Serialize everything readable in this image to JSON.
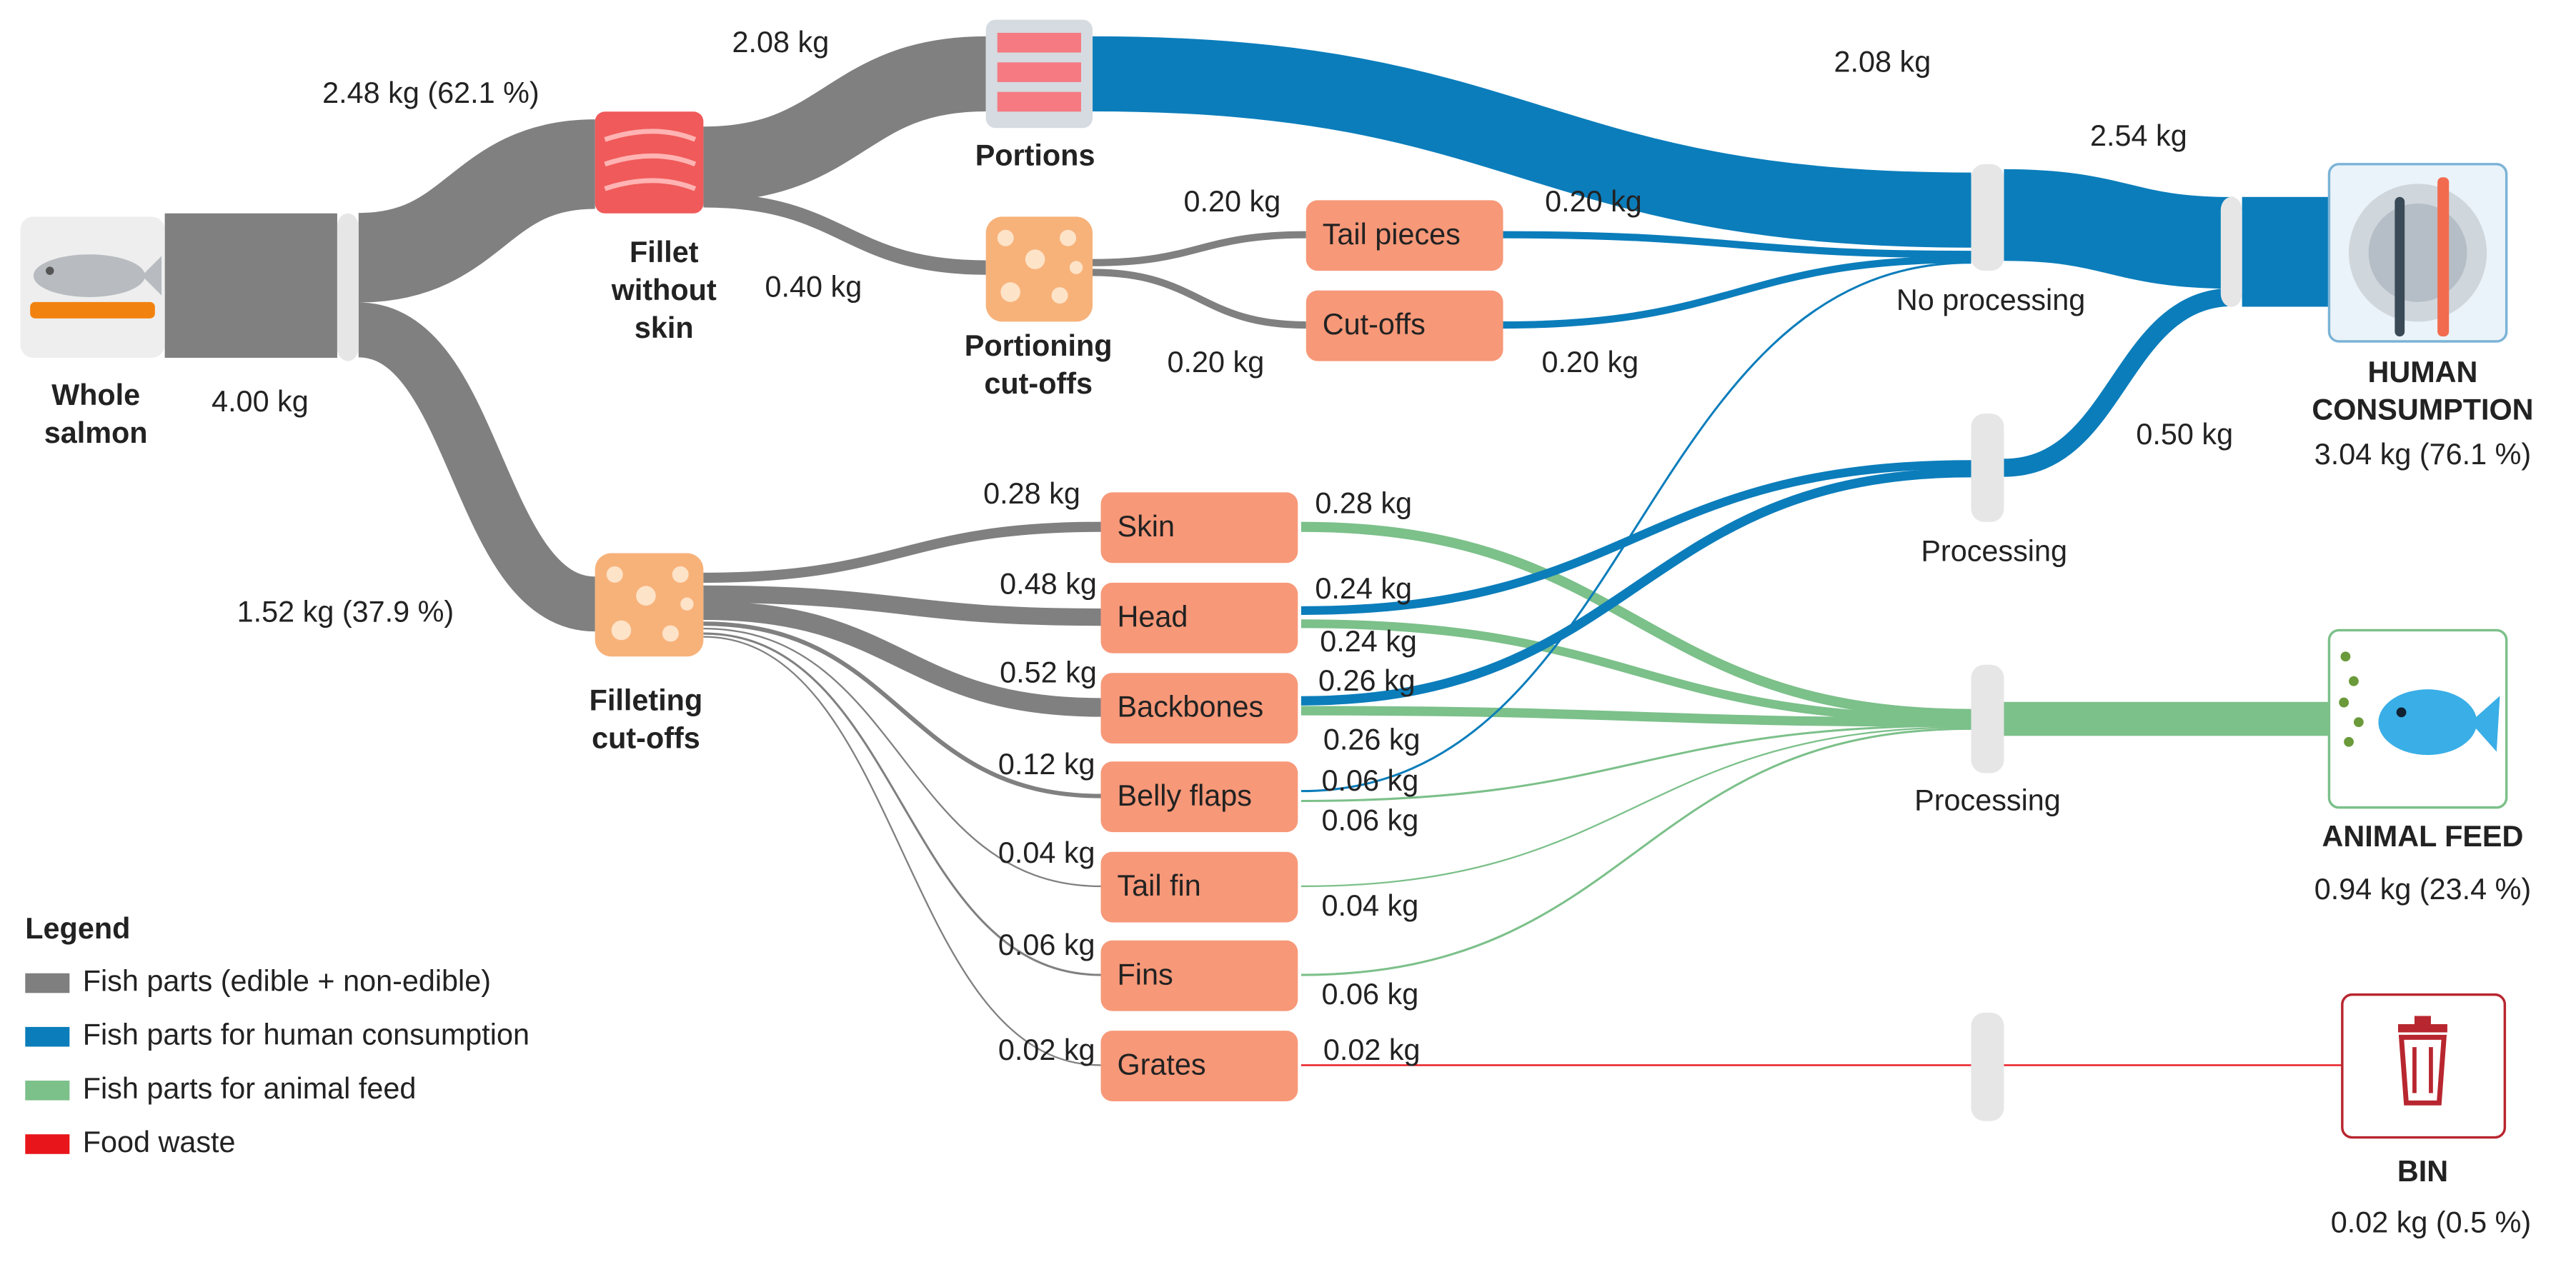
{
  "nodes": {
    "whole": {
      "label": [
        "Whole",
        "salmon"
      ],
      "value": 4.0,
      "value_label": "4.00 kg"
    },
    "fillet": {
      "label": [
        "Fillet",
        "without",
        "skin"
      ]
    },
    "portions": {
      "label": [
        "Portions"
      ]
    },
    "portioning": {
      "label": [
        "Portioning",
        "cut-offs"
      ]
    },
    "filleting": {
      "label": [
        "Filleting",
        "cut-offs"
      ]
    },
    "parts": [
      "Tail pieces",
      "Cut-offs",
      "Skin",
      "Head",
      "Backbones",
      "Belly flaps",
      "Tail fin",
      "Fins",
      "Grates"
    ],
    "stations": [
      "No processing",
      "Processing",
      "Processing"
    ],
    "human": {
      "label": [
        "HUMAN",
        "CONSUMPTION"
      ],
      "value": 3.04,
      "value_label": "3.04 kg (76.1 %)"
    },
    "feed": {
      "label": [
        "ANIMAL FEED"
      ],
      "value": 0.94,
      "value_label": "0.94 kg (23.4 %)"
    },
    "bin": {
      "label": [
        "BIN"
      ],
      "value": 0.02,
      "value_label": "0.02 kg (0.5 %)"
    }
  },
  "flows": {
    "gray": [
      {
        "value": 2.48,
        "label": "2.48 kg (62.1 %)"
      },
      {
        "value": 1.52,
        "label": "1.52 kg (37.9 %)"
      },
      {
        "value": 2.08,
        "label": "2.08 kg"
      },
      {
        "value": 0.4,
        "label": "0.40 kg"
      },
      {
        "value": 0.2,
        "label": "0.20 kg"
      },
      {
        "value": 0.2,
        "label": "0.20 kg"
      },
      {
        "value": 0.28,
        "label": "0.28 kg"
      },
      {
        "value": 0.48,
        "label": "0.48 kg"
      },
      {
        "value": 0.52,
        "label": "0.52 kg"
      },
      {
        "value": 0.12,
        "label": "0.12 kg"
      },
      {
        "value": 0.04,
        "label": "0.04 kg"
      },
      {
        "value": 0.06,
        "label": "0.06 kg"
      },
      {
        "value": 0.02,
        "label": "0.02 kg"
      }
    ],
    "blue": [
      {
        "value": 2.08,
        "label": "2.08 kg"
      },
      {
        "value": 0.2,
        "label": "0.20 kg"
      },
      {
        "value": 0.2,
        "label": "0.20 kg"
      },
      {
        "value": 0.06,
        "label": "0.06 kg"
      },
      {
        "value": 0.24,
        "label": "0.24 kg"
      },
      {
        "value": 0.26,
        "label": "0.26 kg"
      },
      {
        "value": 2.54,
        "label": "2.54 kg"
      },
      {
        "value": 0.5,
        "label": "0.50 kg"
      }
    ],
    "green": [
      {
        "value": 0.28,
        "label": "0.28 kg"
      },
      {
        "value": 0.24,
        "label": "0.24 kg"
      },
      {
        "value": 0.26,
        "label": "0.26 kg"
      },
      {
        "value": 0.06,
        "label": "0.06 kg"
      },
      {
        "value": 0.04,
        "label": "0.04 kg"
      },
      {
        "value": 0.06,
        "label": "0.06 kg"
      }
    ],
    "red": [
      {
        "value": 0.02,
        "label": "0.02 kg"
      }
    ]
  },
  "legend": {
    "title": "Legend",
    "items": [
      {
        "label": "Fish parts (edible + non-edible)",
        "color": "#7f7f7f"
      },
      {
        "label": "Fish parts for human consumption",
        "color": "#0b7dbb"
      },
      {
        "label": "Fish parts for animal feed",
        "color": "#7cc08a"
      },
      {
        "label": "Food waste",
        "color": "#e8161b"
      }
    ]
  }
}
